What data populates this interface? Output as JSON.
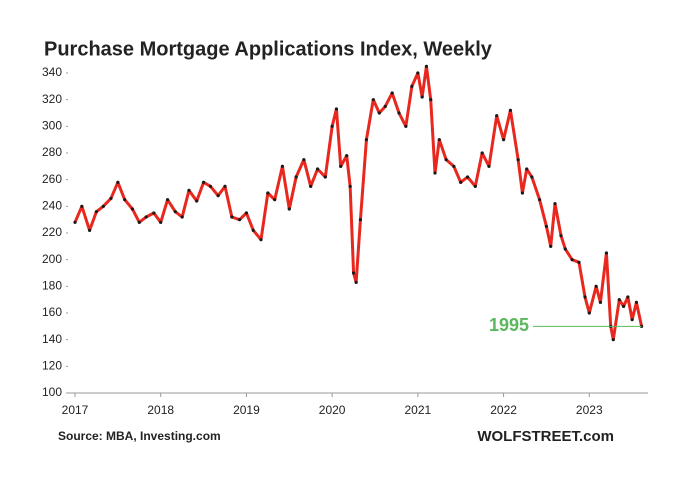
{
  "chart_data": {
    "type": "line",
    "title": "Purchase Mortgage Applications Index, Weekly",
    "source": "Source: MBA,  Investing.com",
    "credit": "WOLFSTREET.com",
    "annotation": "1995",
    "series": [
      {
        "color": "#e8281e",
        "marker_color": "#1a1a1a",
        "x": [
          2017.0,
          2017.08,
          2017.17,
          2017.25,
          2017.33,
          2017.42,
          2017.5,
          2017.58,
          2017.67,
          2017.75,
          2017.83,
          2017.92,
          2018.0,
          2018.08,
          2018.17,
          2018.25,
          2018.33,
          2018.42,
          2018.5,
          2018.58,
          2018.67,
          2018.75,
          2018.83,
          2018.92,
          2019.0,
          2019.08,
          2019.17,
          2019.25,
          2019.33,
          2019.42,
          2019.5,
          2019.58,
          2019.67,
          2019.75,
          2019.83,
          2019.92,
          2020.0,
          2020.05,
          2020.1,
          2020.17,
          2020.21,
          2020.25,
          2020.28,
          2020.33,
          2020.4,
          2020.48,
          2020.55,
          2020.62,
          2020.7,
          2020.78,
          2020.86,
          2020.93,
          2021.0,
          2021.05,
          2021.1,
          2021.15,
          2021.2,
          2021.25,
          2021.33,
          2021.42,
          2021.5,
          2021.58,
          2021.67,
          2021.75,
          2021.83,
          2021.92,
          2022.0,
          2022.08,
          2022.17,
          2022.22,
          2022.27,
          2022.33,
          2022.42,
          2022.5,
          2022.55,
          2022.6,
          2022.67,
          2022.72,
          2022.8,
          2022.88,
          2022.95,
          2023.0,
          2023.08,
          2023.13,
          2023.2,
          2023.25,
          2023.28,
          2023.35,
          2023.4,
          2023.45,
          2023.5,
          2023.55,
          2023.61
        ],
        "values": [
          228,
          240,
          222,
          236,
          240,
          246,
          258,
          245,
          238,
          228,
          232,
          235,
          228,
          245,
          236,
          232,
          252,
          244,
          258,
          255,
          248,
          255,
          232,
          230,
          235,
          222,
          215,
          250,
          245,
          270,
          238,
          262,
          275,
          255,
          268,
          262,
          300,
          313,
          270,
          278,
          255,
          190,
          183,
          230,
          290,
          320,
          310,
          315,
          325,
          310,
          300,
          330,
          340,
          322,
          345,
          320,
          265,
          290,
          275,
          270,
          258,
          262,
          255,
          280,
          270,
          308,
          290,
          312,
          275,
          250,
          268,
          262,
          245,
          225,
          210,
          242,
          218,
          208,
          200,
          198,
          172,
          160,
          180,
          168,
          205,
          150,
          140,
          170,
          165,
          172,
          155,
          168,
          150
        ]
      }
    ],
    "xlim": [
      2017,
      2023.65
    ],
    "xticks": [
      2017,
      2018,
      2019,
      2020,
      2021,
      2022,
      2023
    ],
    "ylim": [
      100,
      340
    ],
    "yticks": [
      100,
      120,
      140,
      160,
      180,
      200,
      220,
      240,
      260,
      280,
      300,
      320,
      340
    ],
    "annotation_value": 150,
    "annotation_color": "#5cb85c",
    "grid": false
  }
}
